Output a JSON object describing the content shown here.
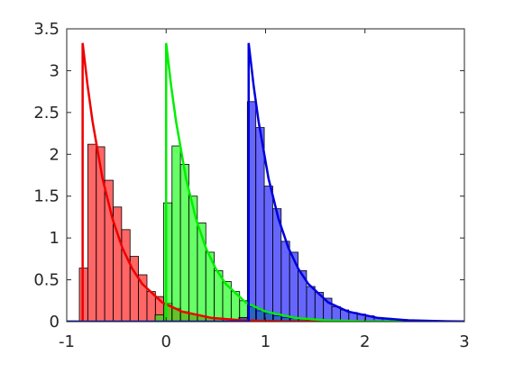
{
  "chart_data": {
    "type": "histogram",
    "xlim": [
      -1,
      3
    ],
    "xticks": [
      -1,
      0,
      1,
      2,
      3
    ],
    "ylim": [
      0,
      3.5
    ],
    "yticks": [
      0,
      0.5,
      1,
      1.5,
      2,
      2.5,
      3,
      3.5
    ],
    "histograms": [
      {
        "color": "#ff0000",
        "bins": [
          -0.873,
          -0.788,
          -0.703,
          -0.618,
          -0.533,
          -0.448,
          -0.363,
          -0.278,
          -0.193,
          -0.108,
          -0.023,
          0.062,
          0.147,
          0.232,
          0.317,
          0.402,
          0.487,
          0.572,
          0.657,
          0.742,
          0.827
        ],
        "counts": [
          0.64,
          2.12,
          2.09,
          1.69,
          1.37,
          1.1,
          0.78,
          0.56,
          0.36,
          0.3,
          0.22,
          0.16,
          0.12,
          0.09,
          0.07,
          0.05,
          0.04,
          0.03,
          0.02,
          0.015
        ]
      },
      {
        "color": "#00ff00",
        "bins": [
          -0.111,
          -0.026,
          0.059,
          0.144,
          0.229,
          0.314,
          0.399,
          0.484,
          0.569,
          0.654,
          0.739,
          0.824,
          0.909,
          0.994,
          1.079,
          1.164,
          1.249,
          1.334,
          1.419,
          1.504,
          1.589,
          1.674
        ],
        "counts": [
          0.08,
          1.42,
          2.1,
          1.88,
          1.5,
          1.18,
          0.83,
          0.61,
          0.48,
          0.36,
          0.25,
          0.18,
          0.13,
          0.1,
          0.07,
          0.05,
          0.04,
          0.03,
          0.02,
          0.015,
          0.01
        ]
      },
      {
        "color": "#0000ff",
        "bins": [
          0.732,
          0.817,
          0.902,
          0.987,
          1.072,
          1.157,
          1.242,
          1.327,
          1.412,
          1.497,
          1.582,
          1.667,
          1.752,
          1.837,
          1.922,
          2.007,
          2.092,
          2.177,
          2.262,
          2.347,
          2.432,
          2.517,
          2.602,
          2.687,
          2.772,
          2.857,
          2.942
        ],
        "counts": [
          0.05,
          2.63,
          2.32,
          1.62,
          1.35,
          0.96,
          0.83,
          0.61,
          0.42,
          0.35,
          0.28,
          0.18,
          0.14,
          0.11,
          0.09,
          0.07,
          0.05,
          0.04,
          0.03,
          0.025,
          0.02,
          0.015,
          0.01,
          0.008,
          0.006,
          0.005
        ]
      }
    ],
    "curves": [
      {
        "color": "#ee0000",
        "x": [
          -1,
          -0.84,
          -0.84,
          -0.79,
          -0.74,
          -0.64,
          -0.54,
          -0.44,
          -0.34,
          -0.24,
          -0.04,
          0.16,
          0.46,
          0.76,
          1.16,
          3
        ],
        "values": [
          0,
          0,
          3.33,
          2.82,
          2.39,
          1.71,
          1.23,
          0.88,
          0.63,
          0.45,
          0.23,
          0.12,
          0.044,
          0.016,
          0.004,
          0
        ]
      },
      {
        "color": "#00ee00",
        "x": [
          -1,
          0,
          0,
          0.05,
          0.1,
          0.2,
          0.3,
          0.4,
          0.5,
          0.6,
          0.8,
          1.0,
          1.3,
          1.6,
          2.0,
          3
        ],
        "values": [
          0,
          0,
          3.33,
          2.82,
          2.39,
          1.71,
          1.23,
          0.88,
          0.63,
          0.45,
          0.23,
          0.12,
          0.044,
          0.016,
          0.004,
          0
        ]
      },
      {
        "color": "#0000dd",
        "x": [
          -1,
          0.83,
          0.83,
          0.88,
          0.93,
          1.03,
          1.13,
          1.23,
          1.33,
          1.43,
          1.63,
          1.83,
          2.13,
          2.43,
          2.83,
          3
        ],
        "values": [
          0,
          0,
          3.33,
          2.82,
          2.39,
          1.71,
          1.23,
          0.88,
          0.63,
          0.45,
          0.23,
          0.12,
          0.044,
          0.016,
          0.004,
          0.002
        ]
      }
    ]
  }
}
